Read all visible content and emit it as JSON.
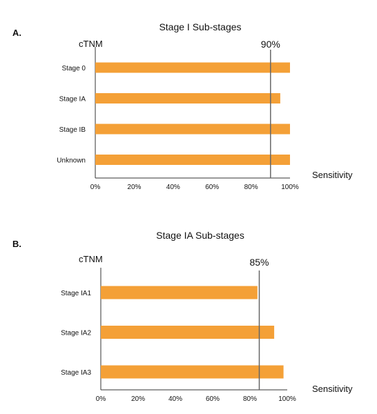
{
  "chart_data": [
    {
      "panel_label": "A.",
      "type": "bar",
      "orientation": "horizontal",
      "title": "Stage I Sub-stages",
      "ylabel": "cTNM",
      "xlabel": "Sensitivity",
      "categories": [
        "Stage 0",
        "Stage IA",
        "Stage IB",
        "Unknown"
      ],
      "values": [
        100,
        95,
        100,
        100
      ],
      "xlim": [
        0,
        100
      ],
      "xticks": [
        "0%",
        "20%",
        "40%",
        "60%",
        "80%",
        "100%"
      ],
      "reference_line": {
        "value": 90,
        "label": "90%"
      },
      "bar_color": "#f4a037",
      "grid": false
    },
    {
      "panel_label": "B.",
      "type": "bar",
      "orientation": "horizontal",
      "title": "Stage IA Sub-stages",
      "ylabel": "cTNM",
      "xlabel": "Sensitivity",
      "categories": [
        "Stage IA1",
        "Stage IA2",
        "Stage IA3"
      ],
      "values": [
        84,
        93,
        98
      ],
      "xlim": [
        0,
        100
      ],
      "xticks": [
        "0%",
        "20%",
        "40%",
        "60%",
        "80%",
        "100%"
      ],
      "reference_line": {
        "value": 85,
        "label": "85%"
      },
      "bar_color": "#f4a037",
      "grid": false
    }
  ]
}
